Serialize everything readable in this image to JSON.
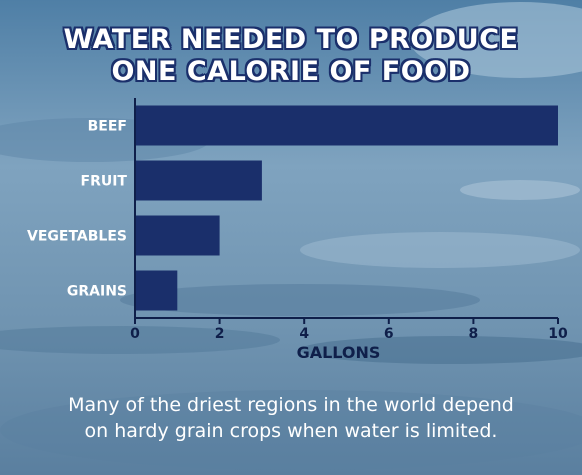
{
  "title_lines": [
    "WATER NEEDED TO PRODUCE",
    "ONE CALORIE OF FOOD"
  ],
  "caption_lines": [
    "Many of the driest regions in the world depend",
    "on hardy grain crops when water is limited."
  ],
  "colors": {
    "bar": "#1a2f6b",
    "axis": "#0f1f4a",
    "background": "#6f94b3",
    "label_text": "#ffffff",
    "axis_title_text": "#0f1f4a"
  },
  "chart_data": {
    "type": "bar",
    "orientation": "horizontal",
    "categories": [
      "BEEF",
      "FRUIT",
      "VEGETABLES",
      "GRAINS"
    ],
    "values": [
      10,
      3,
      2,
      1
    ],
    "xlabel": "GALLONS",
    "ylabel": "",
    "xlim": [
      0,
      10
    ],
    "xticks": [
      0,
      2,
      4,
      6,
      8,
      10
    ],
    "grid": false,
    "legend": "none"
  }
}
